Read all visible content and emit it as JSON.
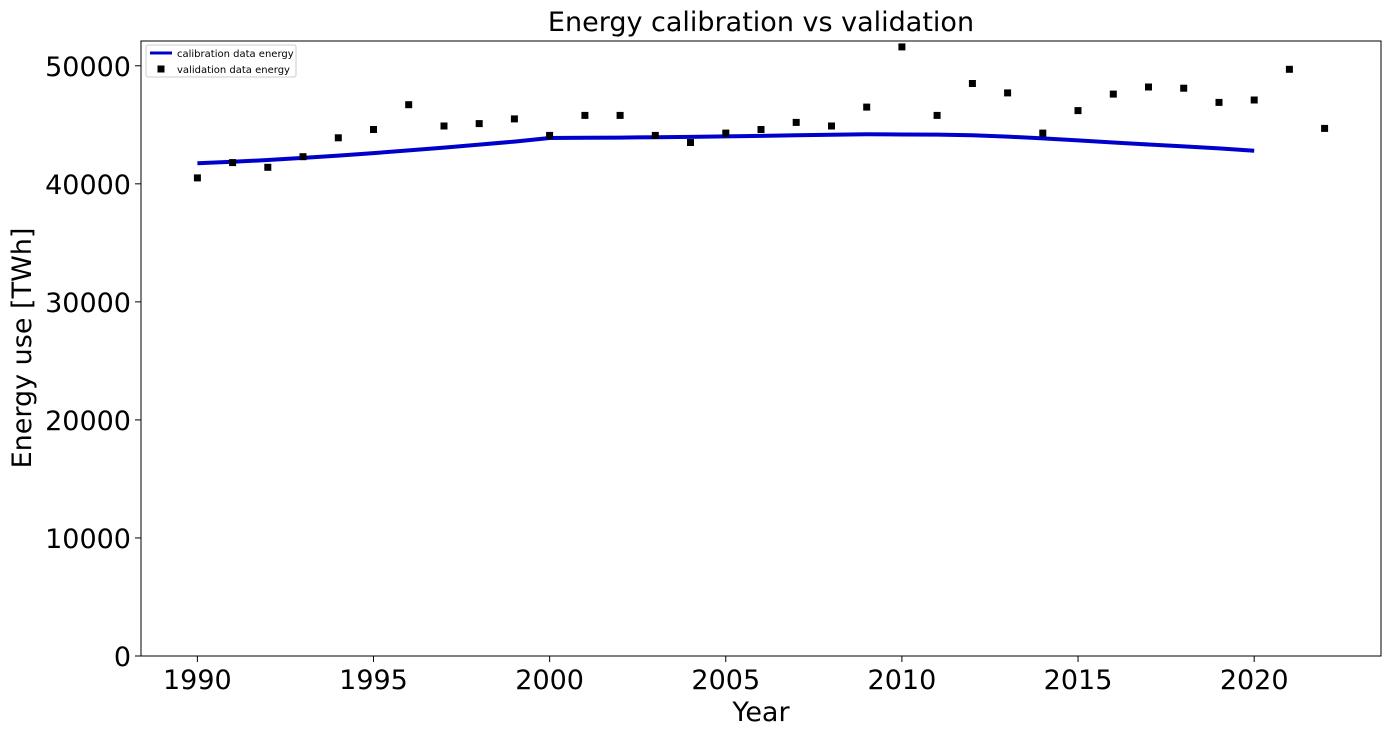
{
  "chart_data": {
    "type": "line",
    "title": "Energy calibration vs validation",
    "xlabel": "Year",
    "ylabel": "Energy use [TWh]",
    "xlim": [
      1988.4,
      2023.6
    ],
    "ylim": [
      0,
      52100
    ],
    "xticks": [
      1990,
      1995,
      2000,
      2005,
      2010,
      2015,
      2020
    ],
    "yticks": [
      0,
      10000,
      20000,
      30000,
      40000,
      50000
    ],
    "grid": false,
    "legend_position": "top-left",
    "series": [
      {
        "name": "calibration data energy",
        "kind": "line",
        "color": "#0000cc",
        "x": [
          1990,
          1991,
          1992,
          1993,
          1994,
          1995,
          1996,
          1997,
          1998,
          1999,
          2000,
          2001,
          2002,
          2003,
          2004,
          2005,
          2006,
          2007,
          2008,
          2009,
          2010,
          2011,
          2012,
          2013,
          2014,
          2015,
          2016,
          2017,
          2018,
          2019,
          2020
        ],
        "y": [
          41750,
          41870,
          42020,
          42200,
          42390,
          42600,
          42830,
          43070,
          43320,
          43580,
          43880,
          43900,
          43920,
          43950,
          43980,
          44020,
          44060,
          44110,
          44160,
          44200,
          44180,
          44170,
          44120,
          44000,
          43850,
          43680,
          43500,
          43330,
          43170,
          43000,
          42800
        ]
      },
      {
        "name": "validation data energy",
        "kind": "scatter",
        "color": "#000000",
        "x": [
          1990,
          1991,
          1992,
          1993,
          1994,
          1995,
          1996,
          1997,
          1998,
          1999,
          2000,
          2001,
          2002,
          2003,
          2004,
          2005,
          2006,
          2007,
          2008,
          2009,
          2010,
          2011,
          2012,
          2013,
          2014,
          2015,
          2016,
          2017,
          2018,
          2019,
          2020,
          2021,
          2022
        ],
        "y": [
          40500,
          41800,
          41400,
          42300,
          43900,
          44600,
          46700,
          44900,
          45100,
          45500,
          44100,
          45800,
          45800,
          44100,
          43500,
          44300,
          44600,
          45200,
          44900,
          46500,
          51600,
          45800,
          48500,
          47700,
          44300,
          46200,
          47600,
          48200,
          48100,
          46900,
          47100,
          49700,
          44700
        ]
      }
    ]
  }
}
